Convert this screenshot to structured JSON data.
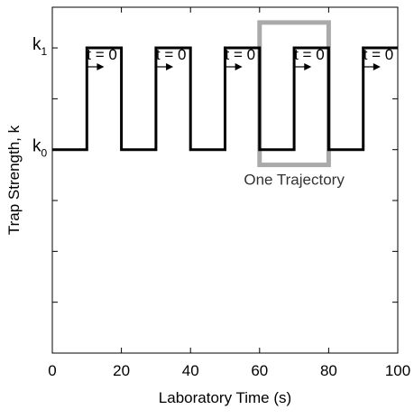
{
  "chart_data": {
    "type": "line",
    "title": "",
    "xlabel": "Laboratory Time (s)",
    "ylabel": "Trap Strength, k",
    "xlim": [
      0,
      100
    ],
    "ylim": [
      -2,
      1.4
    ],
    "xticks": [
      0,
      20,
      40,
      60,
      80,
      100
    ],
    "xtick_labels": [
      "0",
      "20",
      "40",
      "60",
      "80",
      "100"
    ],
    "yticks": [
      -1.5,
      -1,
      -0.5,
      0,
      0.5,
      1
    ],
    "ytick_labels": [
      {
        "value": 0,
        "base": "k",
        "sub": "0"
      },
      {
        "value": 1,
        "base": "k",
        "sub": "1"
      }
    ],
    "grid": false,
    "series": [
      {
        "x": [
          0,
          10,
          10,
          20,
          20,
          30,
          30,
          40,
          40,
          50,
          50,
          60,
          60,
          70,
          70,
          80,
          80,
          90,
          90,
          100
        ],
        "y": [
          0,
          0,
          1,
          1,
          0,
          0,
          1,
          1,
          0,
          0,
          1,
          1,
          0,
          0,
          1,
          1,
          0,
          0,
          1,
          1
        ],
        "color": "#000000"
      }
    ],
    "annotations": [
      {
        "text": "t = 0",
        "x": 10,
        "arrow_to": 15
      },
      {
        "text": "t = 0",
        "x": 30,
        "arrow_to": 35
      },
      {
        "text": "t = 0",
        "x": 50,
        "arrow_to": 55
      },
      {
        "text": "t = 0",
        "x": 70,
        "arrow_to": 75
      },
      {
        "text": "t = 0",
        "x": 90,
        "arrow_to": 95
      }
    ],
    "highlight": {
      "x0": 60,
      "x1": 80,
      "y0": -0.15,
      "y1": 1.25,
      "label": "One Trajectory",
      "color": "#aaaaaa"
    }
  }
}
